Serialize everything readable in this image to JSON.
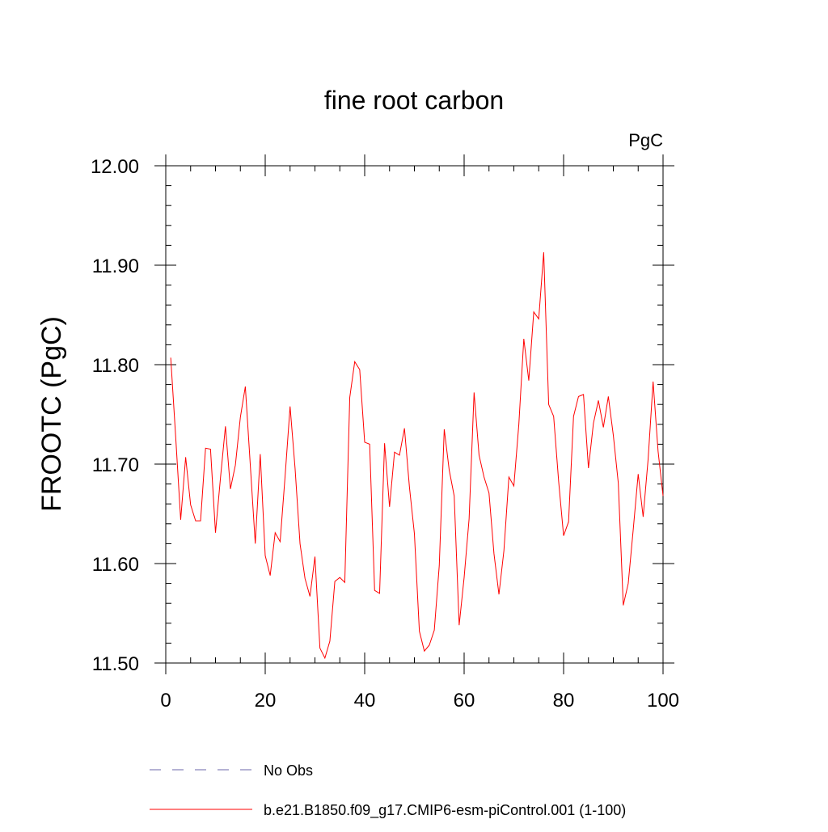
{
  "chart_data": {
    "type": "line",
    "title": "fine root carbon",
    "units_label": "PgC",
    "ylabel": "FROOTC  (PgC)",
    "xlabel": "",
    "xlim": [
      0,
      100
    ],
    "ylim": [
      11.5,
      12.0
    ],
    "x_ticks": [
      0,
      20,
      40,
      60,
      80,
      100
    ],
    "x_tick_labels": [
      "0",
      "20",
      "40",
      "60",
      "80",
      "100"
    ],
    "y_ticks": [
      11.5,
      11.6,
      11.7,
      11.8,
      11.9,
      12.0
    ],
    "y_tick_labels": [
      "11.50",
      "11.60",
      "11.70",
      "11.80",
      "11.90",
      "12.00"
    ],
    "grid": false,
    "legend_position": "bottom",
    "series": [
      {
        "name": "b.e21.B1850.f09_g17.CMIP6-esm-piControl.001 (1-100)",
        "color": "#ff0000",
        "style": "solid",
        "x": [
          1,
          2,
          3,
          4,
          5,
          6,
          7,
          8,
          9,
          10,
          11,
          12,
          13,
          14,
          15,
          16,
          17,
          18,
          19,
          20,
          21,
          22,
          23,
          24,
          25,
          26,
          27,
          28,
          29,
          30,
          31,
          32,
          33,
          34,
          35,
          36,
          37,
          38,
          39,
          40,
          41,
          42,
          43,
          44,
          45,
          46,
          47,
          48,
          49,
          50,
          51,
          52,
          53,
          54,
          55,
          56,
          57,
          58,
          59,
          60,
          61,
          62,
          63,
          64,
          65,
          66,
          67,
          68,
          69,
          70,
          71,
          72,
          73,
          74,
          75,
          76,
          77,
          78,
          79,
          80,
          81,
          82,
          83,
          84,
          85,
          86,
          87,
          88,
          89,
          90,
          91,
          92,
          93,
          94,
          95,
          96,
          97,
          98,
          99,
          100
        ],
        "values": [
          11.807,
          11.727,
          11.644,
          11.707,
          11.659,
          11.643,
          11.643,
          11.716,
          11.715,
          11.631,
          11.686,
          11.738,
          11.675,
          11.699,
          11.747,
          11.778,
          11.699,
          11.62,
          11.71,
          11.608,
          11.588,
          11.631,
          11.622,
          11.688,
          11.758,
          11.696,
          11.62,
          11.585,
          11.567,
          11.607,
          11.515,
          11.505,
          11.522,
          11.582,
          11.586,
          11.581,
          11.767,
          11.803,
          11.795,
          11.722,
          11.72,
          11.573,
          11.57,
          11.721,
          11.657,
          11.712,
          11.709,
          11.736,
          11.677,
          11.63,
          11.532,
          11.512,
          11.518,
          11.533,
          11.598,
          11.735,
          11.694,
          11.668,
          11.538,
          11.586,
          11.645,
          11.772,
          11.709,
          11.687,
          11.671,
          11.61,
          11.569,
          11.613,
          11.687,
          11.678,
          11.74,
          11.826,
          11.784,
          11.853,
          11.846,
          11.913,
          11.76,
          11.748,
          11.683,
          11.628,
          11.642,
          11.748,
          11.768,
          11.77,
          11.696,
          11.741,
          11.764,
          11.737,
          11.768,
          11.729,
          11.681,
          11.558,
          11.58,
          11.634,
          11.69,
          11.647,
          11.705,
          11.783,
          11.713,
          11.668
        ]
      },
      {
        "name": "No Obs",
        "color": "#6b66a8",
        "style": "dashed",
        "x": [],
        "values": []
      }
    ]
  }
}
